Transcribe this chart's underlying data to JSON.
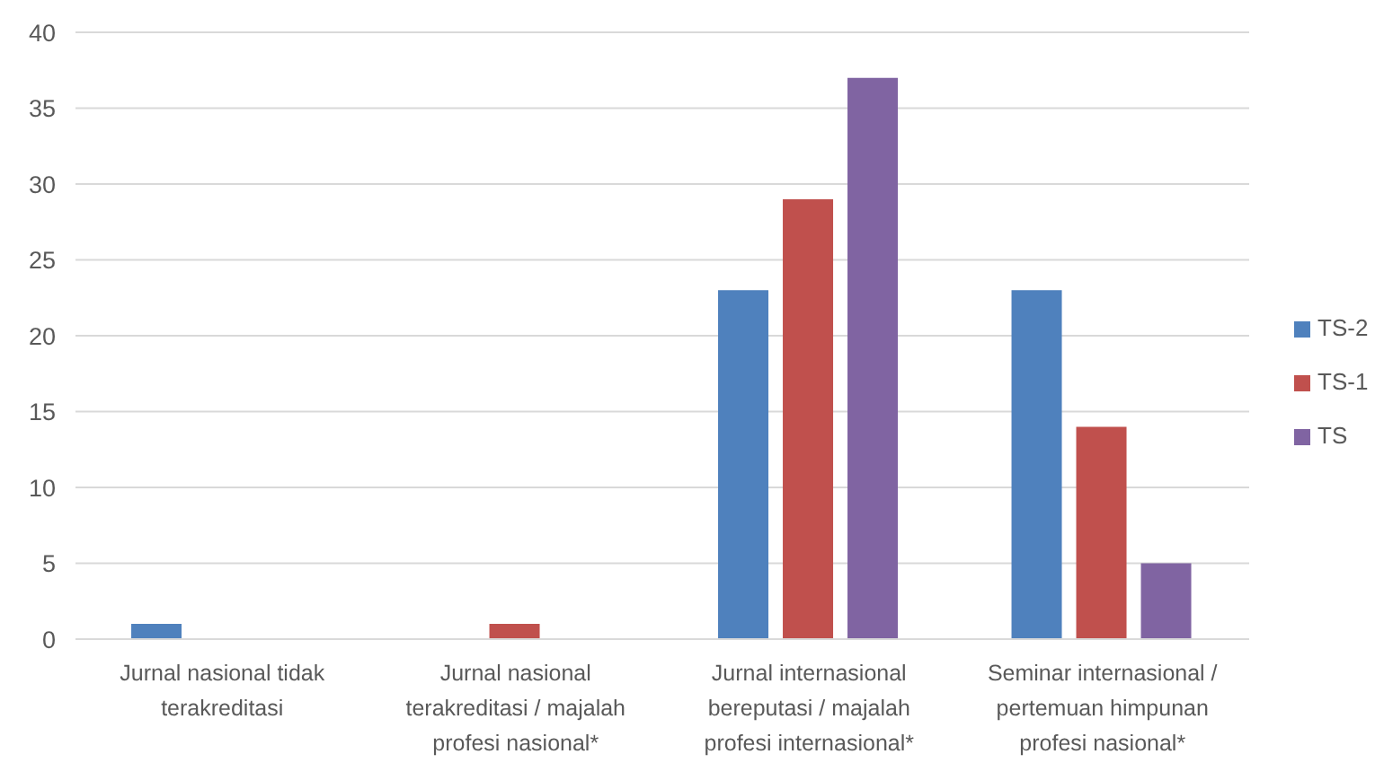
{
  "chart_data": {
    "type": "bar",
    "categories": [
      "Jurnal nasional tidak terakreditasi",
      "Jurnal nasional terakreditasi / majalah profesi nasional*",
      "Jurnal internasional bereputasi / majalah profesi internasional*",
      "Seminar internasional / pertemuan himpunan profesi nasional*"
    ],
    "series": [
      {
        "name": "TS-2",
        "color": "#4f81bd",
        "values": [
          1,
          0,
          23,
          23
        ]
      },
      {
        "name": "TS-1",
        "color": "#c0504d",
        "values": [
          0,
          1,
          29,
          14
        ]
      },
      {
        "name": "TS",
        "color": "#8064a2",
        "values": [
          0,
          0,
          37,
          5
        ]
      }
    ],
    "ylim": [
      0,
      40
    ],
    "yticks": [
      0,
      5,
      10,
      15,
      20,
      25,
      30,
      35,
      40
    ],
    "grid": "y",
    "legend": "right"
  }
}
